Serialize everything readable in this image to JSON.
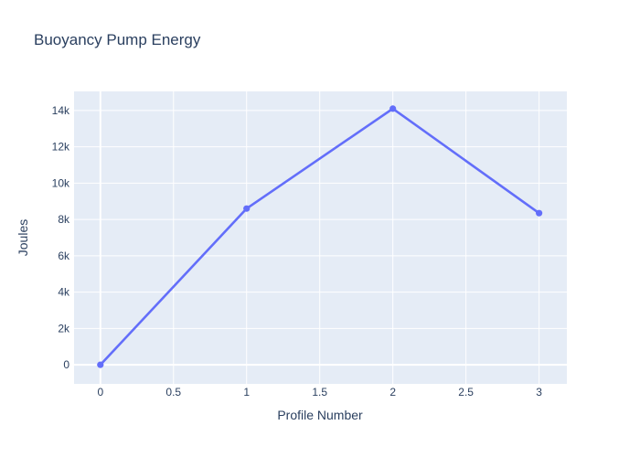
{
  "chart_data": {
    "type": "line",
    "title": "Buoyancy Pump Energy",
    "xlabel": "Profile Number",
    "ylabel": "Joules",
    "x": [
      0,
      1,
      2,
      3
    ],
    "y": [
      0,
      8600,
      14100,
      8350
    ],
    "xlim": [
      -0.18,
      3.19
    ],
    "ylim": [
      -1050,
      15050
    ],
    "x_ticks": {
      "values": [
        0,
        0.5,
        1,
        1.5,
        2,
        2.5,
        3
      ],
      "labels": [
        "0",
        "0.5",
        "1",
        "1.5",
        "2",
        "2.5",
        "3"
      ]
    },
    "y_ticks": {
      "values": [
        0,
        2000,
        4000,
        6000,
        8000,
        10000,
        12000,
        14000
      ],
      "labels": [
        "0",
        "2k",
        "4k",
        "6k",
        "8k",
        "10k",
        "12k",
        "14k"
      ]
    },
    "grid": true,
    "legend": "none",
    "marker": "circle",
    "colors": {
      "line": "#636efa",
      "plot_bg": "#e5ecf6",
      "grid": "#ffffff",
      "text": "#2a3f5f",
      "title": "#2a3f5f",
      "page_bg": "#ffffff"
    }
  }
}
